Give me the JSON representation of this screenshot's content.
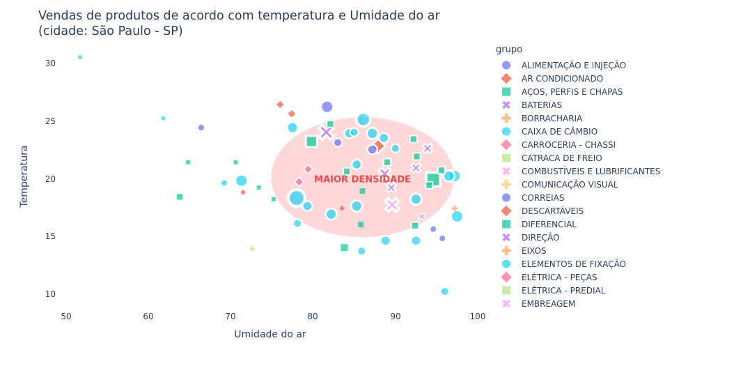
{
  "title": "Vendas de produtos de acordo com temperatura e Umidade do ar\n(cidade: São Paulo - SP)",
  "legend": {
    "title": "grupo",
    "items": [
      {
        "label": "ALIMENTAÇÃO E INJEÇÃO",
        "color": "#636EFA",
        "symbol": "circle"
      },
      {
        "label": "AR CONDICIONADO",
        "color": "#EF553B",
        "symbol": "diamond"
      },
      {
        "label": "AÇOS, PERFIS E CHAPAS",
        "color": "#00CC96",
        "symbol": "square"
      },
      {
        "label": "BATERIAS",
        "color": "#AB63FA",
        "symbol": "x"
      },
      {
        "label": "BORRACHARIA",
        "color": "#FFA15A",
        "symbol": "cross"
      },
      {
        "label": "CAIXA DE CÂMBIO",
        "color": "#19D3F3",
        "symbol": "circle"
      },
      {
        "label": "CARROCERIA - CHASSI",
        "color": "#FF6692",
        "symbol": "diamond"
      },
      {
        "label": "CATRACA DE FREIO",
        "color": "#B6E880",
        "symbol": "square"
      },
      {
        "label": "COMBUSTÍVEIS E LUBRIFICANTES",
        "color": "#FF97FF",
        "symbol": "x"
      },
      {
        "label": "COMUNICAÇÃO VISUAL",
        "color": "#FECB52",
        "symbol": "cross"
      },
      {
        "label": "CORREIAS",
        "color": "#636EFA",
        "symbol": "circle"
      },
      {
        "label": "DESCARTÁVEIS",
        "color": "#EF553B",
        "symbol": "diamond"
      },
      {
        "label": "DIFERENCIAL",
        "color": "#00CC96",
        "symbol": "square"
      },
      {
        "label": "DIREÇÃO",
        "color": "#AB63FA",
        "symbol": "x"
      },
      {
        "label": "EIXOS",
        "color": "#FFA15A",
        "symbol": "cross"
      },
      {
        "label": "ELEMENTOS DE FIXAÇÃO",
        "color": "#19D3F3",
        "symbol": "circle"
      },
      {
        "label": "ELÉTRICA - PEÇAS",
        "color": "#FF6692",
        "symbol": "diamond"
      },
      {
        "label": "ELÉTRICA - PREDIAL",
        "color": "#B6E880",
        "symbol": "square"
      },
      {
        "label": "EMBREAGEM",
        "color": "#FF97FF",
        "symbol": "x"
      }
    ]
  },
  "axes": {
    "x": {
      "label": "Umidade do ar",
      "ticks": [
        "50",
        "60",
        "70",
        "80",
        "90",
        "100"
      ]
    },
    "y": {
      "label": "Temperatura",
      "ticks": [
        "30",
        "25",
        "20",
        "15",
        "10"
      ]
    }
  },
  "annotation": {
    "text": "MAIOR DENSIDADE",
    "color": "#EF4A4A"
  },
  "chart_data": {
    "type": "scatter",
    "title": "Vendas de produtos de acordo com temperatura e Umidade do ar (cidade: São Paulo - SP)",
    "xlabel": "Umidade do ar",
    "ylabel": "Temperatura",
    "xlim": [
      50,
      100
    ],
    "ylim": [
      9,
      31
    ],
    "grid": false,
    "legend_position": "right",
    "legend_title": "grupo",
    "shapes": [
      {
        "type": "ellipse",
        "center": [
          86,
          20.2
        ],
        "rx": 11.1,
        "ry": 5.2,
        "fill": "#FFCCCC",
        "opacity": 0.75
      }
    ],
    "annotations": [
      {
        "text": "MAIOR DENSIDADE",
        "x": 86,
        "y": 20,
        "color": "#EF4A4A"
      }
    ],
    "points": [
      {
        "x": 81.7,
        "y": 26.3,
        "g": 0,
        "s": 9
      },
      {
        "x": 81.6,
        "y": 24.1,
        "g": 3,
        "s": 11
      },
      {
        "x": 86.1,
        "y": 25.2,
        "g": 5,
        "s": 10
      },
      {
        "x": 78.0,
        "y": 18.4,
        "g": 5,
        "s": 12
      },
      {
        "x": 77.5,
        "y": 24.5,
        "g": 5,
        "s": 8
      },
      {
        "x": 79.8,
        "y": 23.3,
        "g": 12,
        "s": 8
      },
      {
        "x": 71.3,
        "y": 19.9,
        "g": 5,
        "s": 9
      },
      {
        "x": 94.6,
        "y": 20.0,
        "g": 2,
        "s": 10
      },
      {
        "x": 89.6,
        "y": 17.8,
        "g": 8,
        "s": 10
      },
      {
        "x": 88.7,
        "y": 20.5,
        "g": 13,
        "s": 9
      },
      {
        "x": 87.9,
        "y": 22.9,
        "g": 1,
        "s": 8
      },
      {
        "x": 97.2,
        "y": 20.3,
        "g": 15,
        "s": 9
      },
      {
        "x": 96.5,
        "y": 20.3,
        "g": 5,
        "s": 8
      },
      {
        "x": 97.5,
        "y": 16.8,
        "g": 15,
        "s": 9
      },
      {
        "x": 85.3,
        "y": 17.7,
        "g": 5,
        "s": 8
      },
      {
        "x": 82.2,
        "y": 17.0,
        "g": 5,
        "s": 8
      },
      {
        "x": 79.3,
        "y": 17.7,
        "g": 15,
        "s": 7
      },
      {
        "x": 88.8,
        "y": 14.7,
        "g": 5,
        "s": 7
      },
      {
        "x": 92.5,
        "y": 14.7,
        "g": 15,
        "s": 7
      },
      {
        "x": 85.9,
        "y": 13.8,
        "g": 5,
        "s": 6
      },
      {
        "x": 83.8,
        "y": 14.1,
        "g": 2,
        "s": 6
      },
      {
        "x": 96.0,
        "y": 10.3,
        "g": 15,
        "s": 6
      },
      {
        "x": 78.1,
        "y": 16.2,
        "g": 5,
        "s": 6
      },
      {
        "x": 92.5,
        "y": 18.3,
        "g": 5,
        "s": 8
      },
      {
        "x": 93.9,
        "y": 22.7,
        "g": 13,
        "s": 7
      },
      {
        "x": 89.5,
        "y": 19.3,
        "g": 3,
        "s": 7
      },
      {
        "x": 92.5,
        "y": 21.0,
        "g": 13,
        "s": 7
      },
      {
        "x": 85.3,
        "y": 21.3,
        "g": 5,
        "s": 7
      },
      {
        "x": 84.4,
        "y": 24.0,
        "g": 5,
        "s": 7
      },
      {
        "x": 87.2,
        "y": 24.0,
        "g": 5,
        "s": 8
      },
      {
        "x": 88.6,
        "y": 23.6,
        "g": 5,
        "s": 7
      },
      {
        "x": 87.2,
        "y": 22.6,
        "g": 10,
        "s": 7
      },
      {
        "x": 85.0,
        "y": 24.1,
        "g": 15,
        "s": 6
      },
      {
        "x": 90.0,
        "y": 22.7,
        "g": 5,
        "s": 6
      },
      {
        "x": 82.1,
        "y": 24.8,
        "g": 2,
        "s": 5
      },
      {
        "x": 83.0,
        "y": 23.2,
        "g": 0,
        "s": 6
      },
      {
        "x": 92.2,
        "y": 23.5,
        "g": 2,
        "s": 5
      },
      {
        "x": 95.6,
        "y": 20.8,
        "g": 2,
        "s": 5
      },
      {
        "x": 92.6,
        "y": 22.0,
        "g": 12,
        "s": 5
      },
      {
        "x": 94.1,
        "y": 19.5,
        "g": 2,
        "s": 5
      },
      {
        "x": 89.0,
        "y": 21.5,
        "g": 2,
        "s": 5
      },
      {
        "x": 84.1,
        "y": 20.7,
        "g": 2,
        "s": 5
      },
      {
        "x": 78.3,
        "y": 19.8,
        "g": 6,
        "s": 5
      },
      {
        "x": 79.4,
        "y": 20.9,
        "g": 6,
        "s": 5
      },
      {
        "x": 76.0,
        "y": 26.5,
        "g": 1,
        "s": 4
      },
      {
        "x": 77.4,
        "y": 25.7,
        "g": 1,
        "s": 5
      },
      {
        "x": 66.4,
        "y": 24.5,
        "g": 0,
        "s": 5
      },
      {
        "x": 63.8,
        "y": 18.5,
        "g": 12,
        "s": 5
      },
      {
        "x": 61.8,
        "y": 25.3,
        "g": 15,
        "s": 3
      },
      {
        "x": 64.8,
        "y": 21.5,
        "g": 2,
        "s": 3
      },
      {
        "x": 70.6,
        "y": 21.5,
        "g": 2,
        "s": 3
      },
      {
        "x": 69.2,
        "y": 19.7,
        "g": 15,
        "s": 4
      },
      {
        "x": 73.4,
        "y": 19.3,
        "g": 2,
        "s": 3
      },
      {
        "x": 71.5,
        "y": 18.9,
        "g": 1,
        "s": 3
      },
      {
        "x": 75.2,
        "y": 18.3,
        "g": 12,
        "s": 3
      },
      {
        "x": 83.5,
        "y": 17.5,
        "g": 1,
        "s": 3
      },
      {
        "x": 86.0,
        "y": 19.0,
        "g": 2,
        "s": 4
      },
      {
        "x": 92.4,
        "y": 16.0,
        "g": 2,
        "s": 5
      },
      {
        "x": 93.2,
        "y": 16.8,
        "g": 13,
        "s": 5
      },
      {
        "x": 94.6,
        "y": 15.7,
        "g": 10,
        "s": 4
      },
      {
        "x": 95.7,
        "y": 14.9,
        "g": 0,
        "s": 4
      },
      {
        "x": 85.8,
        "y": 16.1,
        "g": 2,
        "s": 4
      },
      {
        "x": 51.7,
        "y": 30.6,
        "g": 15,
        "s": 3
      },
      {
        "x": 72.6,
        "y": 14.0,
        "g": 9,
        "s": 3
      },
      {
        "x": 97.2,
        "y": 17.5,
        "g": 14,
        "s": 4
      }
    ]
  }
}
